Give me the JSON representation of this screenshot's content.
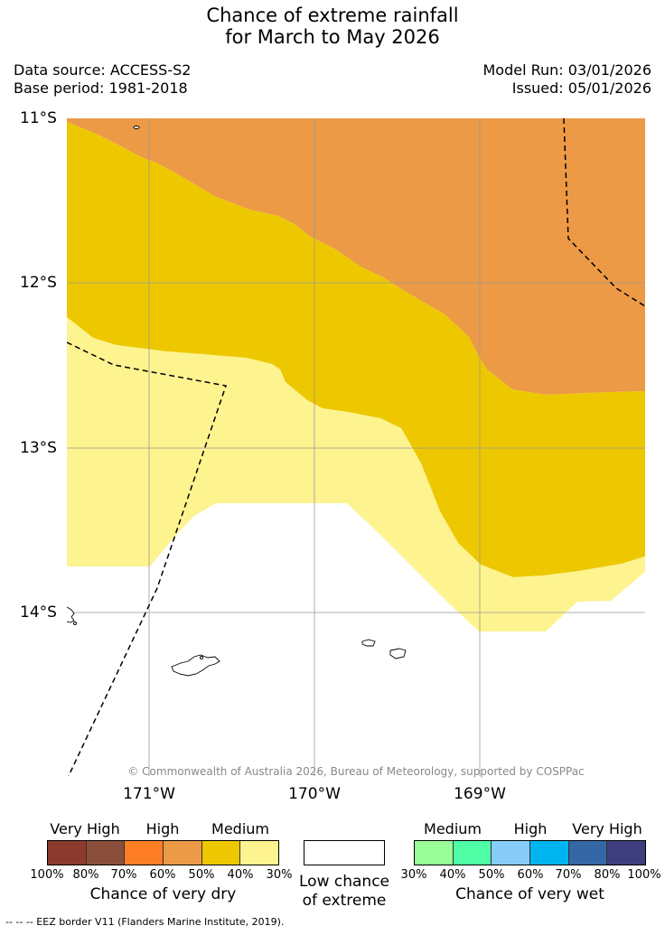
{
  "header": {
    "title_line1": "Chance of extreme rainfall",
    "title_line2": "for March to May 2026",
    "data_source": "Data source: ACCESS-S2",
    "base_period": "Base period: 1981-2018",
    "model_run": "Model Run: 03/01/2026",
    "issued": "Issued: 05/01/2026"
  },
  "map": {
    "lat_labels": [
      "11°S",
      "12°S",
      "13°S",
      "14°S"
    ],
    "lon_labels": [
      "171°W",
      "170°W",
      "169°W"
    ],
    "copyright": "© Commonwealth of Australia 2026, Bureau of Meteorology, supported by COSPPac",
    "colors": {
      "high_dry": "#ec9a46",
      "medium_dry_40": "#edc800",
      "medium_dry_30": "#fdf38f",
      "low": "#ffffff"
    }
  },
  "legend": {
    "dry": {
      "tiers": [
        "Very High",
        "High",
        "Medium"
      ],
      "ticks": [
        "100%",
        "80%",
        "70%",
        "60%",
        "50%",
        "40%",
        "30%"
      ],
      "colors": [
        "#8d3a2e",
        "#8a4f3a",
        "#fd7e24",
        "#ec9a46",
        "#edc800",
        "#fdf38f"
      ],
      "caption": "Chance of very dry"
    },
    "low": {
      "caption_line1": "Low chance",
      "caption_line2": "of extreme",
      "color": "#ffffff"
    },
    "wet": {
      "tiers": [
        "Medium",
        "High",
        "Very High"
      ],
      "ticks": [
        "30%",
        "40%",
        "50%",
        "60%",
        "70%",
        "80%",
        "100%"
      ],
      "colors": [
        "#99fd98",
        "#4ffda5",
        "#87cbf9",
        "#00b4f0",
        "#3566a6",
        "#3e3e7d"
      ],
      "caption": "Chance of very wet"
    }
  },
  "footer": {
    "eez_note": "--  --  -- EEZ border V11 (Flanders Marine Institute, 2019)."
  }
}
